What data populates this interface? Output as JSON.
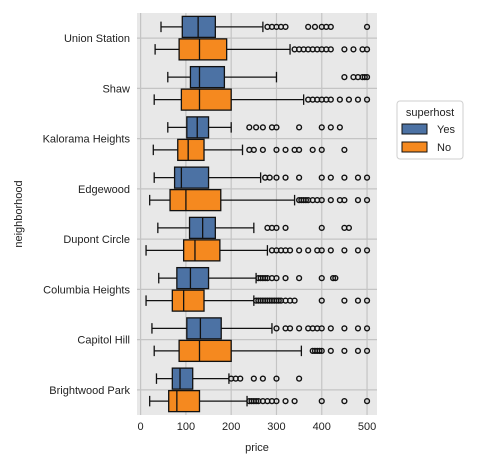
{
  "chart_data": {
    "type": "boxplot",
    "xlabel": "price",
    "ylabel": "neighborhood",
    "xlim": [
      -8,
      522
    ],
    "xticks": [
      0,
      100,
      200,
      300,
      400,
      500
    ],
    "grid": true,
    "legend": {
      "title": "superhost",
      "placement": "right"
    },
    "series": [
      {
        "name": "Yes",
        "color": "#4c72a4"
      },
      {
        "name": "No",
        "color": "#f5891f"
      }
    ],
    "categories": [
      "Union Station",
      "Shaw",
      "Kalorama Heights",
      "Edgewood",
      "Dupont Circle",
      "Columbia Heights",
      "Capitol Hill",
      "Brightwood Park"
    ],
    "boxes": {
      "Yes": [
        {
          "wlo": 45,
          "q1": 92,
          "med": 127,
          "q3": 165,
          "whi": 270,
          "fliers": [
            280,
            290,
            300,
            310,
            320,
            370,
            385,
            400,
            410,
            420,
            500
          ]
        },
        {
          "wlo": 60,
          "q1": 110,
          "med": 130,
          "q3": 185,
          "whi": 300,
          "fliers": [
            450,
            470,
            480,
            490,
            495,
            500
          ]
        },
        {
          "wlo": 60,
          "q1": 102,
          "med": 125,
          "q3": 150,
          "whi": 200,
          "fliers": [
            240,
            255,
            270,
            290,
            300,
            350,
            400,
            420,
            440
          ]
        },
        {
          "wlo": 30,
          "q1": 75,
          "med": 90,
          "q3": 150,
          "whi": 265,
          "fliers": [
            275,
            285,
            300,
            320,
            350,
            400,
            420,
            450,
            480,
            500
          ]
        },
        {
          "wlo": 38,
          "q1": 108,
          "med": 137,
          "q3": 165,
          "whi": 250,
          "fliers": [
            280,
            290,
            300,
            320,
            400,
            450,
            460
          ]
        },
        {
          "wlo": 40,
          "q1": 80,
          "med": 110,
          "q3": 150,
          "whi": 255,
          "fliers": [
            260,
            265,
            270,
            275,
            280,
            290,
            300,
            320,
            350,
            400,
            425,
            430
          ]
        },
        {
          "wlo": 25,
          "q1": 102,
          "med": 132,
          "q3": 178,
          "whi": 290,
          "fliers": [
            300,
            320,
            330,
            350,
            370,
            380,
            390,
            400,
            420,
            450,
            480,
            500
          ]
        },
        {
          "wlo": 35,
          "q1": 70,
          "med": 87,
          "q3": 115,
          "whi": 195,
          "fliers": [
            200,
            210,
            220,
            250,
            270,
            300,
            350
          ]
        }
      ],
      "No": [
        {
          "wlo": 32,
          "q1": 85,
          "med": 130,
          "q3": 190,
          "whi": 330,
          "fliers": [
            340,
            350,
            360,
            370,
            380,
            390,
            400,
            410,
            420,
            450,
            470,
            490,
            500
          ]
        },
        {
          "wlo": 30,
          "q1": 90,
          "med": 130,
          "q3": 200,
          "whi": 360,
          "fliers": [
            370,
            380,
            390,
            400,
            410,
            420,
            440,
            460,
            480,
            500
          ]
        },
        {
          "wlo": 28,
          "q1": 82,
          "med": 105,
          "q3": 140,
          "whi": 225,
          "fliers": [
            240,
            250,
            270,
            300,
            320,
            340,
            350,
            380,
            400,
            450
          ]
        },
        {
          "wlo": 20,
          "q1": 65,
          "med": 100,
          "q3": 177,
          "whi": 340,
          "fliers": [
            350,
            355,
            360,
            365,
            370,
            380,
            390,
            400,
            420,
            440,
            450,
            480,
            500
          ]
        },
        {
          "wlo": 12,
          "q1": 95,
          "med": 120,
          "q3": 175,
          "whi": 280,
          "fliers": [
            290,
            300,
            310,
            320,
            330,
            350,
            370,
            390,
            400,
            420,
            450,
            480,
            500
          ]
        },
        {
          "wlo": 12,
          "q1": 70,
          "med": 95,
          "q3": 140,
          "whi": 250,
          "fliers": [
            255,
            260,
            265,
            270,
            275,
            280,
            285,
            290,
            295,
            300,
            305,
            310,
            320,
            330,
            340,
            400,
            450,
            480,
            500
          ]
        },
        {
          "wlo": 30,
          "q1": 85,
          "med": 130,
          "q3": 200,
          "whi": 355,
          "fliers": [
            380,
            385,
            390,
            395,
            400,
            420,
            450,
            480,
            500
          ]
        },
        {
          "wlo": 20,
          "q1": 62,
          "med": 80,
          "q3": 130,
          "whi": 235,
          "fliers": [
            240,
            245,
            250,
            255,
            260,
            270,
            280,
            290,
            300,
            320,
            340,
            400,
            450,
            500
          ]
        }
      ]
    }
  }
}
